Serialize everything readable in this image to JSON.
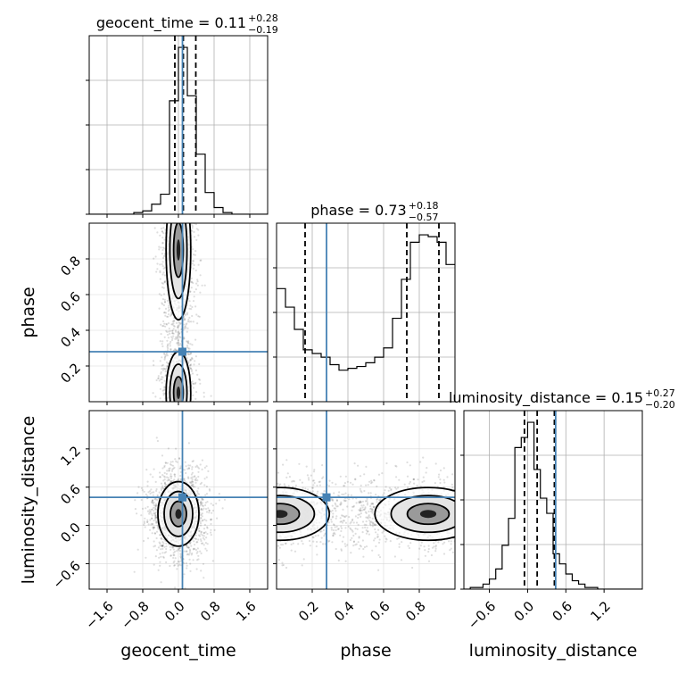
{
  "chart_data": {
    "type": "corner",
    "parameters": [
      "geocent_time",
      "phase",
      "luminosity_distance"
    ],
    "truths": {
      "geocent_time": 0.09,
      "phase": 0.28,
      "luminosity_distance": 0.44
    },
    "truth_color": "#4682b4",
    "grid": true,
    "titles": [
      {
        "param": "geocent_time",
        "text": "geocent_time = 0.11",
        "plus": "+0.28",
        "minus": "−0.19"
      },
      {
        "param": "phase",
        "text": "phase = 0.73",
        "plus": "+0.18",
        "minus": "−0.57"
      },
      {
        "param": "luminosity_distance",
        "text": "luminosity_distance = 0.15",
        "plus": "+0.27",
        "minus": "−0.20"
      }
    ],
    "axes": {
      "geocent_time": {
        "range": [
          -2.0,
          2.0
        ],
        "ticks": [
          -1.6,
          -0.8,
          0.0,
          0.8,
          1.6
        ],
        "tick_labels": [
          "−1.6",
          "−0.8",
          "0.0",
          "0.8",
          "1.6"
        ]
      },
      "phase": {
        "range": [
          0.0,
          1.0
        ],
        "ticks": [
          0.2,
          0.4,
          0.6,
          0.8
        ],
        "tick_labels": [
          "0.2",
          "0.4",
          "0.6",
          "0.8"
        ]
      },
      "luminosity_distance": {
        "range": [
          -1.0,
          1.8
        ],
        "ticks": [
          -0.6,
          0.0,
          0.6,
          1.2
        ],
        "tick_labels": [
          "−0.6",
          "0.0",
          "0.6",
          "1.2"
        ]
      }
    },
    "marginals": {
      "geocent_time": {
        "quantile_lines": [
          -0.08,
          0.11,
          0.39
        ],
        "bin_edges": [
          -2.0,
          -1.8,
          -1.6,
          -1.4,
          -1.2,
          -1.0,
          -0.8,
          -0.6,
          -0.4,
          -0.2,
          0.0,
          0.2,
          0.4,
          0.6,
          0.8,
          1.0,
          1.2,
          1.4,
          1.6,
          1.8,
          2.0
        ],
        "counts": [
          0,
          0,
          0,
          0,
          0,
          1,
          2,
          6,
          12,
          68,
          100,
          71,
          36,
          13,
          4,
          1,
          0,
          0,
          0,
          0
        ]
      },
      "phase": {
        "quantile_lines": [
          0.16,
          0.73,
          0.91
        ],
        "bin_edges": [
          0.0,
          0.05,
          0.1,
          0.15,
          0.2,
          0.25,
          0.3,
          0.35,
          0.4,
          0.45,
          0.5,
          0.55,
          0.6,
          0.65,
          0.7,
          0.75,
          0.8,
          0.85,
          0.9,
          0.95,
          1.0
        ],
        "counts": [
          61,
          51,
          39,
          28,
          26,
          24,
          20,
          17,
          18,
          19,
          21,
          24,
          29,
          45,
          66,
          86,
          90,
          89,
          86,
          74
        ]
      },
      "luminosity_distance": {
        "quantile_lines": [
          -0.05,
          0.15,
          0.42
        ],
        "bin_edges": [
          -1.0,
          -0.9,
          -0.8,
          -0.7,
          -0.6,
          -0.5,
          -0.4,
          -0.3,
          -0.2,
          -0.1,
          0.0,
          0.1,
          0.2,
          0.3,
          0.4,
          0.5,
          0.6,
          0.7,
          0.8,
          0.9,
          1.0,
          1.1,
          1.2,
          1.3,
          1.4,
          1.5,
          1.6,
          1.7,
          1.8
        ],
        "counts": [
          0,
          1,
          1,
          3,
          6,
          12,
          26,
          42,
          84,
          90,
          99,
          71,
          54,
          45,
          21,
          15,
          9,
          5,
          3,
          1,
          1,
          0,
          0,
          0,
          0,
          0,
          0,
          0
        ]
      }
    },
    "contour_levels": [
      0.39,
      0.86,
      0.99
    ],
    "joint": [
      {
        "x": "geocent_time",
        "y": "phase",
        "modes": [
          {
            "cx": 0.0,
            "cy": 0.85,
            "sx": 0.12,
            "sy": 0.17
          },
          {
            "cx": 0.0,
            "cy": 0.05,
            "sx": 0.12,
            "sy": 0.1
          }
        ]
      },
      {
        "x": "geocent_time",
        "y": "luminosity_distance",
        "modes": [
          {
            "cx": 0.0,
            "cy": 0.18,
            "sx": 0.2,
            "sy": 0.22
          }
        ]
      },
      {
        "x": "phase",
        "y": "luminosity_distance",
        "modes": [
          {
            "cx": 0.85,
            "cy": 0.18,
            "sx": 0.13,
            "sy": 0.18
          },
          {
            "cx": 0.02,
            "cy": 0.18,
            "sx": 0.12,
            "sy": 0.18
          }
        ]
      }
    ]
  }
}
